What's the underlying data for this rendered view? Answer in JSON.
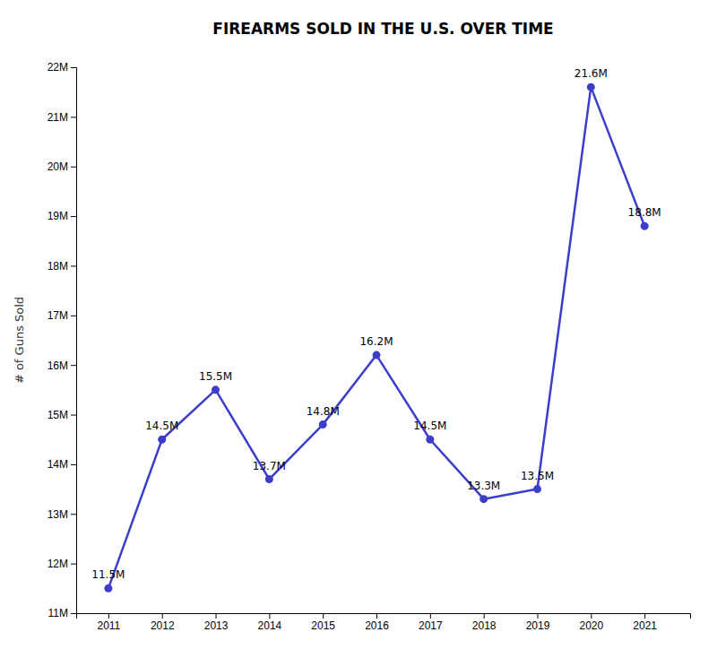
{
  "chart_data": {
    "type": "line",
    "title": "FIREARMS SOLD IN THE U.S. OVER TIME",
    "x": [
      2011,
      2012,
      2013,
      2014,
      2015,
      2016,
      2017,
      2018,
      2019,
      2020,
      2021
    ],
    "values": [
      11.5,
      14.5,
      15.5,
      13.7,
      14.8,
      16.2,
      14.5,
      13.3,
      13.5,
      21.6,
      18.8
    ],
    "value_labels": [
      "11.5M",
      "14.5M",
      "15.5M",
      "13.7M",
      "14.8M",
      "16.2M",
      "14.5M",
      "13.3M",
      "13.5M",
      "21.6M",
      "18.8M"
    ],
    "data_labels": true,
    "color": "#3d3dcc",
    "marker": "circle",
    "y_label": "# of Guns Sold",
    "xlim": [
      2010.4,
      2021.85
    ],
    "xticks": [
      2011,
      2012,
      2013,
      2014,
      2015,
      2016,
      2017,
      2018,
      2019,
      2020,
      2021
    ],
    "ylim": [
      11,
      22
    ],
    "yticks": [
      {
        "value": 11,
        "label": "11M"
      },
      {
        "value": 12,
        "label": "12M"
      },
      {
        "value": 13,
        "label": "13M"
      },
      {
        "value": 14,
        "label": "14M"
      },
      {
        "value": 15,
        "label": "15M"
      },
      {
        "value": 16,
        "label": "16M"
      },
      {
        "value": 17,
        "label": "17M"
      },
      {
        "value": 18,
        "label": "18M"
      },
      {
        "value": 19,
        "label": "19M"
      },
      {
        "value": 20,
        "label": "20M"
      },
      {
        "value": 21,
        "label": "21M"
      },
      {
        "value": 22,
        "label": "22M"
      }
    ],
    "grid": false
  }
}
